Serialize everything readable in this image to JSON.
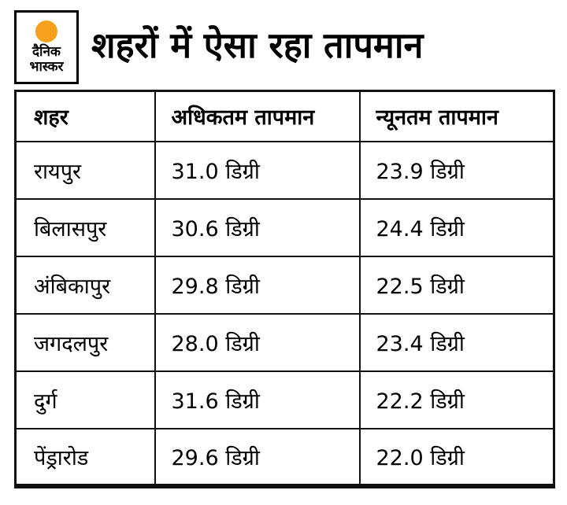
{
  "logo": {
    "line1": "दैनिक",
    "line2": "भास्कर"
  },
  "title": "शहरों में ऐसा रहा तापमान",
  "colors": {
    "accent_orange": "#f6a01e",
    "text": "#000000",
    "border": "#111111",
    "background": "#ffffff"
  },
  "chart_data": {
    "type": "table",
    "title": "शहरों में ऐसा रहा तापमान",
    "columns": [
      "शहर",
      "अधिकतम तापमान",
      "न्यूनतम तापमान"
    ],
    "rows": [
      [
        "रायपुर",
        "31.0 डिग्री",
        "23.9 डिग्री"
      ],
      [
        "बिलासपुर",
        "30.6 डिग्री",
        "24.4 डिग्री"
      ],
      [
        "अंबिकापुर",
        "29.8 डिग्री",
        "22.5 डिग्री"
      ],
      [
        "जगदलपुर",
        "28.0 डिग्री",
        "23.4 डिग्री"
      ],
      [
        "दुर्ग",
        "31.6 डिग्री",
        "22.2 डिग्री"
      ],
      [
        "पेंड्रारोड",
        "29.6 डिग्री",
        "22.0 डिग्री"
      ]
    ],
    "cities": [
      "रायपुर",
      "बिलासपुर",
      "अंबिकापुर",
      "जगदलपुर",
      "दुर्ग",
      "पेंड्रारोड"
    ],
    "max_temp_c": [
      31.0,
      30.6,
      29.8,
      28.0,
      31.6,
      29.6
    ],
    "min_temp_c": [
      23.9,
      24.4,
      22.5,
      23.4,
      22.2,
      22.0
    ],
    "unit": "डिग्री",
    "legend_position": "none",
    "grid": true
  }
}
